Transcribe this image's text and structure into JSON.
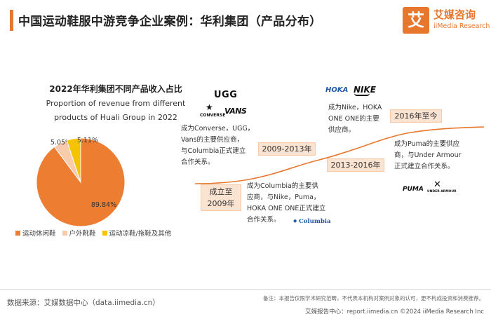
{
  "header": {
    "title": "中国运动鞋服中游竞争企业案例：华利集团（产品分布）"
  },
  "logo": {
    "mark": "艾",
    "cn": "艾媒咨询",
    "en": "iiMedia Research"
  },
  "chart_data": {
    "type": "pie",
    "title": "2022年华利集团不同产品收入占比",
    "subtitle_line1": "Proportion of revenue from different",
    "subtitle_line2": "products of Huali Group in 2022",
    "categories": [
      "运动休闲鞋",
      "户外靴鞋",
      "运动凉鞋/拖鞋及其他"
    ],
    "values": [
      89.84,
      5.05,
      5.11
    ],
    "labels": [
      "89.84%",
      "5.05%",
      "5.11%"
    ],
    "colors": [
      "#ed7d31",
      "#f8cbad",
      "#f5c400"
    ],
    "legend_position": "bottom"
  },
  "timeline": {
    "milestones": [
      {
        "label_line1": "成立至",
        "label_line2": "2009年"
      },
      {
        "label": "2009-2013年"
      },
      {
        "label": "2013-2016年"
      },
      {
        "label": "2016年至今"
      }
    ],
    "notes": [
      {
        "text": [
          "成为Converse，UGG，",
          "Vans的主要供应商，",
          "与Columbia正式建立",
          "合作关系。"
        ]
      },
      {
        "text": [
          "成为Columbia的主要供",
          "应商，与Nike，Puma，",
          "HOKA ONE ONE正式建立",
          "合作关系。"
        ]
      },
      {
        "text": [
          "成为Nike，HOKA",
          "ONE ONE的主要",
          "供应商。"
        ]
      },
      {
        "text": [
          "成为Puma的主要供应",
          "商，与Under Armour",
          "正式建立合作关系。"
        ]
      }
    ],
    "line_color": "#e8772e"
  },
  "brands": {
    "ugg": "UGG",
    "converse": "CONVERSE",
    "vans": "VANS",
    "hoka": "HOKA",
    "nike": "NIKE",
    "columbia": "Columbia",
    "puma": "PUMA",
    "under_armour": "UNDER ARMOUR"
  },
  "footer": {
    "source": "数据来源：艾媒数据中心（data.iimedia.cn）",
    "disclaimer": "备注：本报告仅限学术研究范畴，不代表本机构对案例对象的认可，更不构成投资和消费推荐。",
    "report_center": "艾媒报告中心：report.iimedia.cn",
    "copyright": "©2024  iiMedia Research  Inc"
  }
}
